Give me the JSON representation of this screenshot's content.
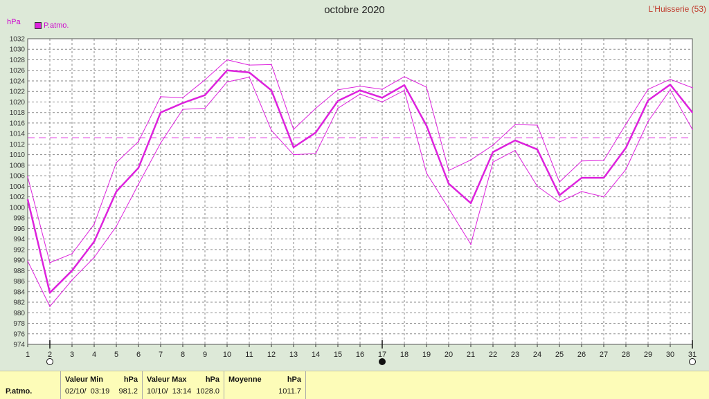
{
  "title": "octobre 2020",
  "location": "L'Huisserie (53)",
  "unit": "hPa",
  "legend": {
    "label": "P.atmo.",
    "color": "#dd22dd"
  },
  "stats": {
    "row_label": "P.atmo.",
    "min": {
      "header": "Valeur Min",
      "unit": "hPa",
      "datetime": "02/10/  03:19",
      "value": "981.2"
    },
    "max": {
      "header": "Valeur Max",
      "unit": "hPa",
      "datetime": "10/10/  13:14",
      "value": "1028.0"
    },
    "avg": {
      "header": "Moyenne",
      "unit": "hPa",
      "value": "1011.7"
    }
  },
  "chart_data": {
    "type": "line",
    "title": "octobre 2020",
    "ylabel": "hPa",
    "xlim": [
      1,
      31
    ],
    "ylim": [
      974,
      1032
    ],
    "ytick_step": 2,
    "x": [
      1,
      2,
      3,
      4,
      5,
      6,
      7,
      8,
      9,
      10,
      11,
      12,
      13,
      14,
      15,
      16,
      17,
      18,
      19,
      20,
      21,
      22,
      23,
      24,
      25,
      26,
      27,
      28,
      29,
      30,
      31
    ],
    "reference_line": 1013.2,
    "grid": true,
    "x_markers": [
      {
        "x": 2,
        "symbol": "open-circle"
      },
      {
        "x": 17,
        "symbol": "filled-circle"
      },
      {
        "x": 31,
        "symbol": "open-circle"
      }
    ],
    "series": [
      {
        "name": "P.atmo.",
        "role": "mean",
        "values": [
          1001.5,
          983.8,
          988.0,
          993.5,
          1003.0,
          1007.5,
          1018.0,
          1019.8,
          1021.3,
          1026.0,
          1025.6,
          1022.2,
          1011.4,
          1014.2,
          1020.2,
          1022.2,
          1020.8,
          1023.2,
          1015.5,
          1004.5,
          1000.8,
          1010.5,
          1012.7,
          1011.0,
          1002.3,
          1005.6,
          1005.6,
          1011.3,
          1020.3,
          1023.3,
          1018.0
        ]
      },
      {
        "name": "max",
        "role": "max",
        "values": [
          1005.8,
          989.5,
          991.2,
          996.8,
          1008.5,
          1012.5,
          1021.0,
          1020.8,
          1024.2,
          1028.0,
          1027.0,
          1027.1,
          1014.8,
          1018.8,
          1022.3,
          1023.0,
          1022.4,
          1024.8,
          1022.8,
          1007.0,
          1009.0,
          1011.8,
          1015.7,
          1015.6,
          1004.8,
          1008.8,
          1008.9,
          1015.8,
          1022.4,
          1024.3,
          1022.7
        ]
      },
      {
        "name": "min",
        "role": "min",
        "values": [
          989.8,
          981.2,
          986.2,
          990.5,
          996.4,
          1004.4,
          1012.2,
          1018.6,
          1018.8,
          1023.8,
          1024.7,
          1014.6,
          1010.0,
          1010.2,
          1018.8,
          1021.5,
          1020.0,
          1022.2,
          1006.5,
          999.8,
          993.0,
          1008.6,
          1010.8,
          1004.0,
          1001.0,
          1003.0,
          1002.0,
          1007.2,
          1016.3,
          1022.3,
          1014.8
        ]
      }
    ]
  }
}
